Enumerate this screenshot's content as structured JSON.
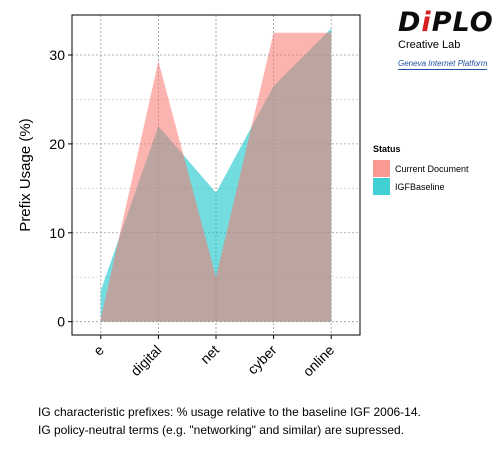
{
  "logo": {
    "word_lead": "D",
    "word_accent": "i",
    "word_tail": "PLO",
    "subtitle": "Creative Lab",
    "platform": "Geneva Internet Platform"
  },
  "caption": {
    "line1": "IG characteristic prefixes: % usage relative to the baseline IGF 2006-14.",
    "line2": "IG policy-neutral terms (e.g. \"networking\" and similar) are supressed."
  },
  "chart_data": {
    "type": "area",
    "categories": [
      "e",
      "digital",
      "net",
      "cyber",
      "online"
    ],
    "series": [
      {
        "name": "Current Document",
        "color": "#f8766d",
        "values": [
          0.3,
          29.3,
          5.0,
          32.5,
          32.5
        ]
      },
      {
        "name": "IGFBaseline",
        "color": "#00bfc4",
        "values": [
          3.5,
          22.0,
          14.5,
          26.5,
          33.0
        ]
      }
    ],
    "ylabel": "Prefix Usage (%)",
    "xlabel": "",
    "ylim": [
      -1.5,
      34.5
    ],
    "yticks": [
      0,
      10,
      20,
      30
    ],
    "grid": true,
    "legend": {
      "title": "Status",
      "position": "right"
    }
  }
}
